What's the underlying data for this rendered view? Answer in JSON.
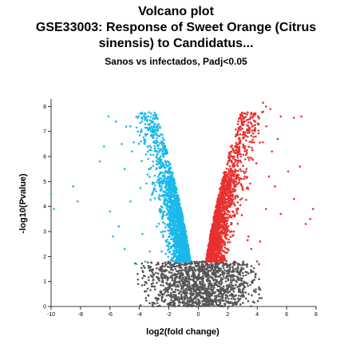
{
  "chart_data": {
    "type": "scatter",
    "title": "Volcano plot",
    "subtitle_lines": [
      "GSE33003: Response of Sweet Orange (Citrus",
      "sinensis) to Candidatus..."
    ],
    "subtitle2": "Sanos vs infectados, Padj<0.05",
    "xlabel": "log2(fold change)",
    "ylabel": "-log10(Pvalue)",
    "xlim": [
      -10,
      8
    ],
    "ylim": [
      0,
      8.3
    ],
    "xticks": [
      "-10",
      "-8",
      "-6",
      "-4",
      "-2",
      "0",
      "2",
      "4",
      "6",
      "8"
    ],
    "yticks": [
      "0",
      "1",
      "2",
      "3",
      "4",
      "5",
      "6",
      "7",
      "8"
    ],
    "grid": false,
    "legend": "none",
    "colors": {
      "down": "#1ab8ea",
      "up": "#e8302f",
      "ns": "#555555"
    },
    "series": [
      {
        "color_role": "down",
        "points": [
          [
            -10.0,
            4.5
          ],
          [
            -9.8,
            3.9
          ],
          [
            -8.5,
            4.8
          ],
          [
            -8.2,
            4.2
          ],
          [
            -6.1,
            7.6
          ],
          [
            -5.6,
            7.4
          ],
          [
            -4.9,
            7.2
          ],
          [
            -4.1,
            7.0
          ],
          [
            -3.6,
            6.9
          ],
          [
            -3.1,
            7.0
          ],
          [
            -6.7,
            5.8
          ],
          [
            -6.4,
            6.4
          ],
          [
            -5.2,
            6.5
          ],
          [
            -5.0,
            5.5
          ],
          [
            -4.5,
            6.2
          ],
          [
            -3.9,
            6.6
          ],
          [
            -3.4,
            5.9
          ],
          [
            -6.0,
            3.8
          ],
          [
            -5.4,
            3.2
          ],
          [
            -5.0,
            2.3
          ],
          [
            -4.6,
            4.2
          ],
          [
            -4.2,
            1.7
          ],
          [
            -3.8,
            2.9
          ],
          [
            -3.6,
            1.8
          ],
          [
            -3.3,
            2.2
          ],
          [
            -5.8,
            2.8
          ]
        ]
      },
      {
        "color_role": "up",
        "points": [
          [
            4.4,
            8.15
          ],
          [
            4.6,
            8.0
          ],
          [
            4.9,
            7.9
          ],
          [
            5.6,
            7.6
          ],
          [
            6.5,
            7.55
          ],
          [
            7.0,
            7.6
          ],
          [
            6.9,
            5.6
          ],
          [
            6.1,
            5.4
          ],
          [
            6.5,
            4.3
          ],
          [
            7.8,
            3.9
          ],
          [
            7.6,
            3.5
          ],
          [
            7.3,
            3.3
          ],
          [
            5.4,
            6.7
          ],
          [
            5.0,
            6.2
          ],
          [
            4.8,
            5.2
          ],
          [
            4.2,
            2.6
          ],
          [
            4.0,
            1.8
          ],
          [
            3.6,
            2.3
          ],
          [
            3.4,
            2.8
          ],
          [
            5.2,
            4.8
          ],
          [
            5.6,
            3.7
          ],
          [
            4.6,
            3.9
          ],
          [
            3.9,
            6.8
          ],
          [
            4.1,
            7.3
          ]
        ]
      },
      {
        "color_role": "ns",
        "points": [
          [
            -0.4,
            0.05
          ],
          [
            0.3,
            0.1
          ],
          [
            1.2,
            0.2
          ],
          [
            -1.6,
            0.3
          ],
          [
            2.3,
            0.15
          ],
          [
            -2.8,
            0.25
          ],
          [
            3.1,
            0.4
          ],
          [
            -3.4,
            0.45
          ],
          [
            1.8,
            0.6
          ],
          [
            -1.0,
            0.8
          ]
        ]
      }
    ]
  }
}
